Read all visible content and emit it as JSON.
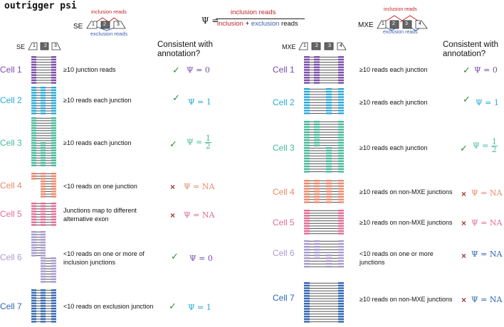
{
  "title": "outrigger psi",
  "colors": {
    "cell1": "#7b4ca8",
    "cell2": "#25a9d8",
    "cell3": "#45b99a",
    "cell4": "#e9896b",
    "cell5": "#e26b97",
    "cell6": "#a99ad0",
    "cell7": "#2e66b1",
    "inclusion": "#c0272d",
    "exclusion": "#3a62b0",
    "check": "#2e8b3d",
    "cross": "#a23b3b"
  },
  "formula": {
    "psi": "Ψ =",
    "numerator": "inclusion reads",
    "den_inclusion": "inclusion",
    "plus": " + ",
    "den_exclusion": "exclusion",
    "den_reads": " reads"
  },
  "se_legend": {
    "label": "SE",
    "inclusion": "inclusion reads",
    "exclusion": "exclusion reads",
    "exons": [
      "1",
      "2",
      "3"
    ]
  },
  "mxe_legend": {
    "label": "MXE",
    "inclusion": "inclusion reads",
    "exclusion": "exclusion reads",
    "exons": [
      "1",
      "2",
      "3",
      "4"
    ]
  },
  "se_panel": {
    "header_label": "SE",
    "exons": [
      "1",
      "2",
      "3"
    ],
    "consistent_header": "Consistent with annotation?",
    "rows": [
      {
        "cell": "Cell 1",
        "desc": "≥10 junction reads",
        "mark": "✓",
        "psi": "Ψ = 0"
      },
      {
        "cell": "Cell 2",
        "desc": "≥10 reads each junction",
        "mark": "✓",
        "psi": "Ψ = 1"
      },
      {
        "cell": "Cell 3",
        "desc": "≥10 reads each junction",
        "mark": "✓",
        "psi_prefix": "Ψ =",
        "psi_num": "1",
        "psi_den": "2"
      },
      {
        "cell": "Cell 4",
        "desc": "<10 reads on one junction",
        "mark": "×",
        "psi": "Ψ = NA"
      },
      {
        "cell": "Cell 5",
        "desc": "Junctions map to different alternative exon",
        "mark": "×",
        "psi": "Ψ = NA"
      },
      {
        "cell": "Cell 6",
        "desc": "<10 reads on one or more of inclusion junctions",
        "mark": "✓",
        "psi": "Ψ = 0"
      },
      {
        "cell": "Cell 7",
        "desc": "<10 reads on exclusion junction",
        "mark": "✓",
        "psi": "Ψ = 1"
      }
    ]
  },
  "mxe_panel": {
    "header_label": "MXE",
    "exons": [
      "1",
      "2",
      "3",
      "4"
    ],
    "consistent_header": "Consistent with annotation?",
    "rows": [
      {
        "cell": "Cell 1",
        "desc": "≥10 reads each junction",
        "mark": "✓",
        "psi": "Ψ = 0"
      },
      {
        "cell": "Cell 2",
        "desc": "≥10 reads each junction",
        "mark": "✓",
        "psi": "Ψ = 1"
      },
      {
        "cell": "Cell 3",
        "desc": "≥10 reads each junction",
        "mark": "✓",
        "psi_prefix": "Ψ =",
        "psi_num": "1",
        "psi_den": "2"
      },
      {
        "cell": "Cell 4",
        "desc": "≥10 reads on non-MXE junctions",
        "mark": "×",
        "psi": "Ψ = NA"
      },
      {
        "cell": "Cell 5",
        "desc": "≥10 reads on non-MXE junctions",
        "mark": "×",
        "psi": "Ψ = NA"
      },
      {
        "cell": "Cell 6",
        "desc": "<10 reads on one or more junctions",
        "mark": "×",
        "psi": "Ψ = NA"
      },
      {
        "cell": "Cell 7",
        "desc": "≥10 reads on non-MXE junctions",
        "mark": "×",
        "psi": "Ψ = NA"
      }
    ]
  }
}
